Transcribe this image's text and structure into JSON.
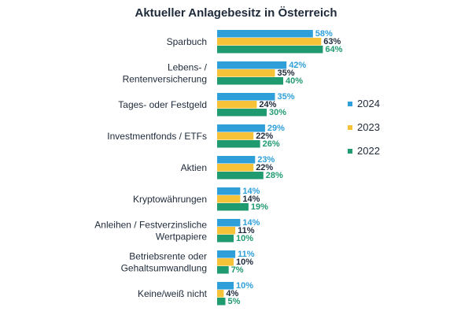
{
  "chart_data": {
    "type": "bar",
    "orientation": "horizontal",
    "title": "Aktueller Anlagebesitz in Österreich",
    "xlim": [
      0,
      70
    ],
    "value_suffix": "%",
    "legend_position": "right",
    "categories": [
      [
        "Sparbuch"
      ],
      [
        "Lebens- /",
        "Rentenversicherung"
      ],
      [
        "Tages- oder Festgeld"
      ],
      [
        "Investmentfonds / ETFs"
      ],
      [
        "Aktien"
      ],
      [
        "Kryptowährungen"
      ],
      [
        "Anleihen / Festverzinsliche",
        "Wertpapiere"
      ],
      [
        "Betriebsrente oder",
        "Gehaltsumwandlung"
      ],
      [
        "Keine/weiß nicht"
      ]
    ],
    "series": [
      {
        "name": "2024",
        "color": "#2e9fd9",
        "label_color": "#2e9fd9",
        "values": [
          58,
          42,
          35,
          29,
          23,
          14,
          14,
          11,
          10
        ]
      },
      {
        "name": "2023",
        "color": "#f6c338",
        "label_color": "#1e2a3a",
        "values": [
          63,
          35,
          24,
          22,
          22,
          14,
          11,
          10,
          4
        ]
      },
      {
        "name": "2022",
        "color": "#1f9b6f",
        "label_color": "#1f9b6f",
        "values": [
          64,
          40,
          30,
          26,
          28,
          19,
          10,
          7,
          5
        ]
      }
    ]
  }
}
